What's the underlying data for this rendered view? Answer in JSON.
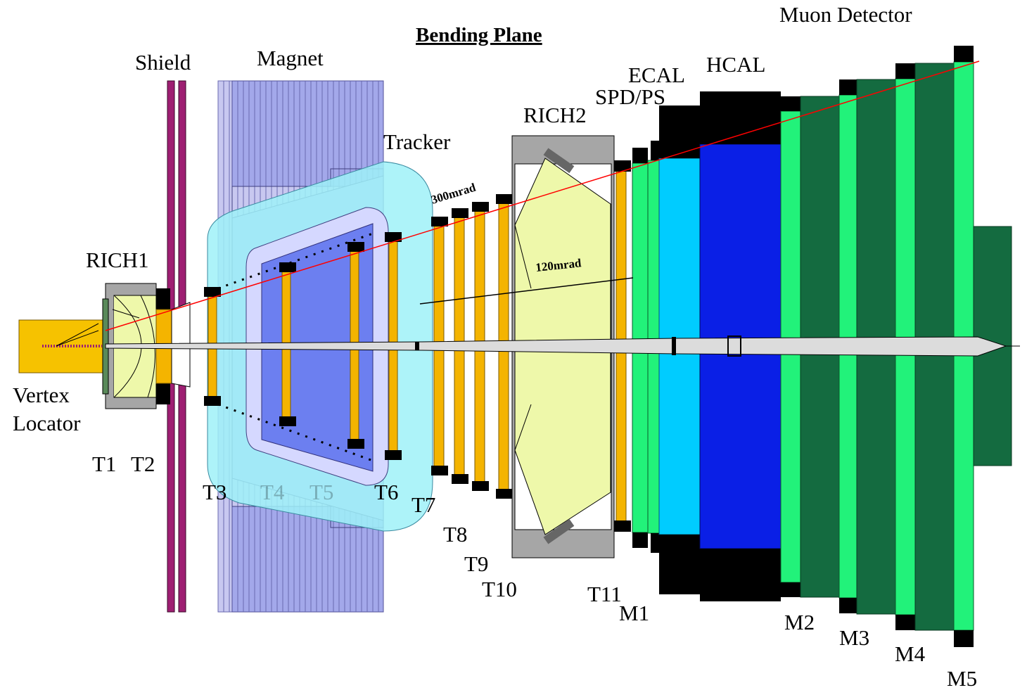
{
  "title": "Bending Plane",
  "colors": {
    "vertex": "#f6c200",
    "rich_gas": "#eef8aa",
    "rich_frame": "#a6a6a6",
    "shield": "#9e1f72",
    "magnet_light": "#c8c8f0",
    "magnet_mid": "#a3a8ea",
    "magnet_dark": "#8a93e6",
    "tracker_cyan": "#9ff1f8",
    "tracker_blue": "#6c7ff0",
    "station_gold": "#f4b400",
    "ecal_cyan": "#00ccff",
    "hcal_blue": "#0a1fe6",
    "muon_light": "#22f27a",
    "muon_dark": "#146b40",
    "black": "#000000",
    "beam_red": "#ff0000"
  },
  "labels": {
    "muon_detector": "Muon Detector",
    "shield": "Shield",
    "magnet": "Magnet",
    "ecal": "ECAL",
    "hcal": "HCAL",
    "spd_ps": "SPD/PS",
    "rich2": "RICH2",
    "tracker": "Tracker",
    "rich1": "RICH1",
    "vertex_1": "Vertex",
    "vertex_2": "Locator",
    "angle_300": "300mrad",
    "angle_120": "120mrad",
    "t1": "T1",
    "t2": "T2",
    "t3": "T3",
    "t4": "T4",
    "t5": "T5",
    "t6": "T6",
    "t7": "T7",
    "t8": "T8",
    "t9": "T9",
    "t10": "T10",
    "t11": "T11",
    "m1": "M1",
    "m2": "M2",
    "m3": "M3",
    "m4": "M4",
    "m5": "M5"
  }
}
